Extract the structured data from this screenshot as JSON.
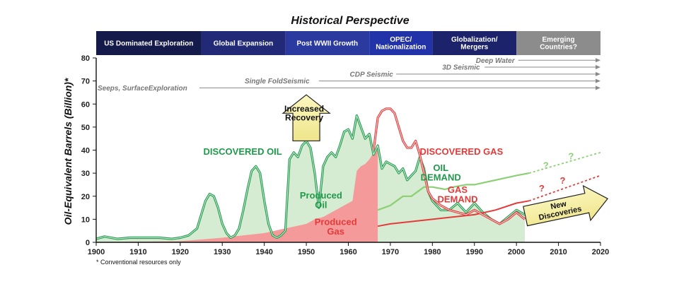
{
  "chart_data": {
    "type": "area",
    "title": "Historical Perspective",
    "ylabel": "Oil-Equivalent Barrels (Billion)*",
    "xlabel": "",
    "footnote": "* Conventional resources only",
    "xlim": [
      1900,
      2020
    ],
    "ylim": [
      0,
      80
    ],
    "x_ticks": [
      1900,
      1910,
      1920,
      1930,
      1940,
      1950,
      1960,
      1970,
      1980,
      1990,
      2000,
      2010,
      2020
    ],
    "y_ticks": [
      0,
      10,
      20,
      30,
      40,
      50,
      60,
      70,
      80
    ],
    "grid": false,
    "eras": [
      {
        "label": [
          "US Dominated Exploration"
        ],
        "start": 1900,
        "end": 1925,
        "color": "#141a4a"
      },
      {
        "label": [
          "Global Expansion"
        ],
        "start": 1925,
        "end": 1945,
        "color": "#222a78"
      },
      {
        "label": [
          "Post WWII Growth"
        ],
        "start": 1945,
        "end": 1965,
        "color": "#2b3a9e"
      },
      {
        "label": [
          "OPEC/",
          "Nationalization"
        ],
        "start": 1965,
        "end": 1980,
        "color": "#2232a8"
      },
      {
        "label": [
          "Globalization/",
          "Mergers"
        ],
        "start": 1980,
        "end": 2000,
        "color": "#1c236a"
      },
      {
        "label": [
          "Emerging",
          "Countries?"
        ],
        "start": 2000,
        "end": 2020,
        "color": "#8c8c8c",
        "text_color": "#f3e27a"
      }
    ],
    "technologies": [
      {
        "label": "Seeps, SurfaceExploration",
        "year": 1900,
        "y": 67
      },
      {
        "label": "Single FoldSeismic",
        "year": 1935,
        "y": 70
      },
      {
        "label": "CDP Seismic",
        "year": 1960,
        "y": 73
      },
      {
        "label": "3D Seismic",
        "year": 1982,
        "y": 76
      },
      {
        "label": "Deep Water",
        "year": 1990,
        "y": 79
      }
    ],
    "series": [
      {
        "name": "DISCOVERED OIL",
        "color": "#1f9a4a",
        "fill": "#d6ecd2",
        "x": [
          1900,
          1902,
          1905,
          1908,
          1912,
          1915,
          1918,
          1920,
          1922,
          1924,
          1925,
          1926,
          1927,
          1928,
          1929,
          1930,
          1931,
          1932,
          1933,
          1934,
          1935,
          1936,
          1937,
          1938,
          1939,
          1940,
          1941,
          1942,
          1943,
          1944,
          1945,
          1946,
          1947,
          1948,
          1949,
          1950,
          1951,
          1952,
          1953,
          1954,
          1955,
          1956,
          1957,
          1958,
          1959,
          1960,
          1961,
          1962,
          1963,
          1964,
          1965,
          1966,
          1967,
          1968,
          1969,
          1970,
          1971,
          1972,
          1973,
          1974,
          1975,
          1976,
          1977,
          1978,
          1979,
          1980,
          1982,
          1984,
          1986,
          1988,
          1990,
          1992,
          1994,
          1996,
          1998,
          2000,
          2002
        ],
        "y": [
          1.5,
          2.5,
          1.5,
          2,
          2,
          2,
          1.5,
          2,
          3,
          6,
          12,
          18,
          21,
          20,
          15,
          8,
          4,
          2,
          3,
          6,
          14,
          23,
          31,
          33,
          30,
          18,
          8,
          3,
          2,
          3,
          5,
          36,
          39,
          37,
          42,
          44,
          41,
          30,
          15,
          33,
          37,
          39,
          37,
          42,
          48,
          49,
          45,
          55,
          50,
          45,
          47,
          38,
          42,
          32,
          35,
          34,
          33,
          30,
          32,
          27,
          29,
          31,
          37,
          32,
          22,
          18,
          14,
          14,
          17,
          13,
          17,
          13,
          10,
          8,
          11,
          14,
          12
        ]
      },
      {
        "name": "DISCOVERED GAS",
        "color": "#e53a3a",
        "fill": "none",
        "x": [
          1966,
          1967,
          1968,
          1969,
          1970,
          1971,
          1972,
          1973,
          1974,
          1975,
          1976,
          1977,
          1978,
          1979,
          1980,
          1982,
          1984,
          1986,
          1988,
          1990,
          1992,
          1994,
          1996,
          1998,
          2000,
          2002
        ],
        "y": [
          40,
          54,
          57,
          58,
          58,
          56,
          50,
          44,
          41,
          41,
          44,
          38,
          30,
          22,
          19,
          16,
          14,
          13,
          12,
          14,
          12,
          10,
          8,
          10,
          13,
          10
        ]
      },
      {
        "name": "OIL DEMAND",
        "color": "#8dcf74",
        "fill": "none",
        "x": [
          1967,
          1970,
          1973,
          1975,
          1978,
          1980,
          1983,
          1985,
          1988,
          1990,
          1995,
          2000,
          2003
        ],
        "y": [
          14,
          16,
          20,
          20,
          24,
          24,
          23,
          24,
          25,
          25,
          27,
          29,
          30
        ]
      },
      {
        "name": "OIL DEMAND (projected)",
        "color": "#8dcf74",
        "fill": "none",
        "dashed": true,
        "x": [
          2003,
          2020
        ],
        "y": [
          30,
          39
        ]
      },
      {
        "name": "GAS DEMAND",
        "color": "#e53a3a",
        "fill": "none",
        "x": [
          1967,
          1970,
          1975,
          1980,
          1985,
          1990,
          1995,
          2000,
          2003
        ],
        "y": [
          7,
          8,
          9,
          10,
          11,
          12,
          14,
          17,
          18
        ]
      },
      {
        "name": "GAS DEMAND (projected)",
        "color": "#e53a3a",
        "fill": "none",
        "dashed": true,
        "x": [
          2003,
          2020
        ],
        "y": [
          18,
          29
        ]
      },
      {
        "name": "Produced Oil",
        "color": "#cfe9c8",
        "fill": "#cfe9c8",
        "x": [
          1900,
          1920,
          1930,
          1940,
          1945,
          1950,
          1955,
          1960,
          1962,
          1964,
          1966,
          1967
        ],
        "y": [
          0.3,
          0.7,
          1.5,
          3,
          4,
          6,
          8,
          11,
          12,
          13,
          14,
          14
        ]
      },
      {
        "name": "Produced Gas",
        "color": "#f59a9a",
        "fill": "#f59a9a",
        "x": [
          1900,
          1920,
          1930,
          1940,
          1945,
          1950,
          1952,
          1954,
          1956,
          1958,
          1960,
          1961,
          1962,
          1963,
          1964,
          1965,
          1966,
          1967
        ],
        "y": [
          0,
          0.5,
          2,
          4,
          6,
          8,
          10,
          11,
          13,
          15,
          17,
          18,
          31,
          33,
          34,
          36,
          39,
          40
        ]
      }
    ],
    "annotations": [
      {
        "text": [
          "DISCOVERED OIL"
        ],
        "year": 1925.5,
        "y": 38,
        "color": "#1f9a4a",
        "size": 13
      },
      {
        "text": [
          "DISCOVERED GAS"
        ],
        "year": 1977,
        "y": 38,
        "color": "#e53a3a",
        "size": 13
      },
      {
        "text": [
          "OIL",
          "DEMAND"
        ],
        "year": 1982,
        "y": 31,
        "color": "#1f9a4a",
        "size": 13
      },
      {
        "text": [
          "GAS",
          "DEMAND"
        ],
        "year": 1986,
        "y": 21.5,
        "color": "#e53a3a",
        "size": 13
      },
      {
        "text": [
          "Produced",
          "Oil"
        ],
        "year": 1953.5,
        "y": 19,
        "color": "#1f9a4a",
        "size": 13
      },
      {
        "text": [
          "Produced",
          "Gas"
        ],
        "year": 1957,
        "y": 7.5,
        "color": "#e53a3a",
        "size": 13
      }
    ],
    "question_marks": [
      {
        "year": 2007,
        "y": 32,
        "color": "#8dcf74"
      },
      {
        "year": 2013,
        "y": 36,
        "color": "#8dcf74"
      },
      {
        "year": 2006,
        "y": 22,
        "color": "#e53a3a"
      },
      {
        "year": 2011,
        "y": 25.5,
        "color": "#e53a3a"
      }
    ],
    "callouts": {
      "increased_recovery": [
        "Increased",
        "Recovery"
      ],
      "new_discoveries": [
        "New",
        "Discoveries"
      ]
    }
  }
}
